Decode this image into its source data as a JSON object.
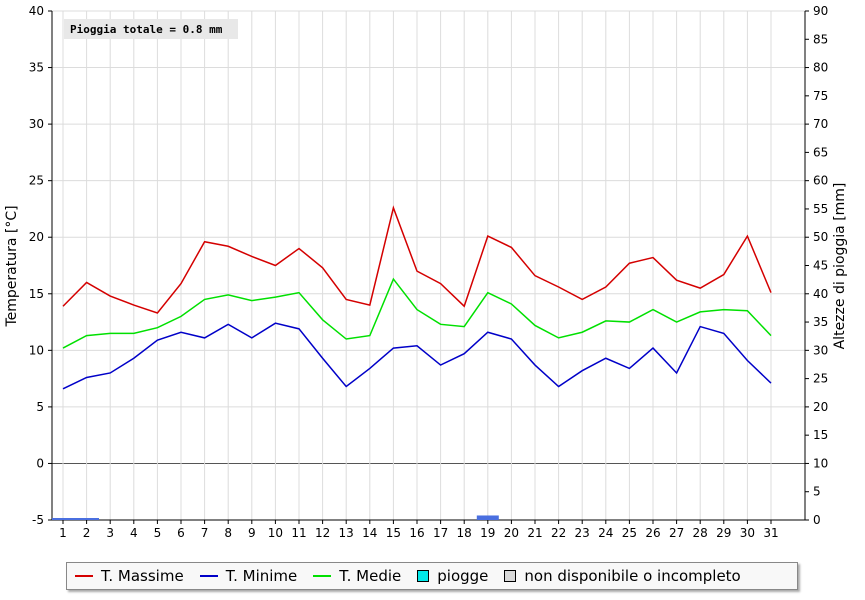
{
  "chart_data": {
    "type": "line",
    "x": [
      1,
      2,
      3,
      4,
      5,
      6,
      7,
      8,
      9,
      10,
      11,
      12,
      13,
      14,
      15,
      16,
      17,
      18,
      19,
      20,
      21,
      22,
      23,
      24,
      25,
      26,
      27,
      28,
      29,
      30,
      31
    ],
    "series": [
      {
        "name": "T. Massime",
        "color": "#d40000",
        "values": [
          13.9,
          16.0,
          14.8,
          14.0,
          13.3,
          15.9,
          19.6,
          19.2,
          18.3,
          17.5,
          19.0,
          17.3,
          14.5,
          14.0,
          22.6,
          17.0,
          15.9,
          13.9,
          20.1,
          19.1,
          16.6,
          15.6,
          14.5,
          15.6,
          17.7,
          18.2,
          16.2,
          15.5,
          16.7,
          20.1,
          15.1
        ]
      },
      {
        "name": "T. Minime",
        "color": "#0000c8",
        "values": [
          6.6,
          7.6,
          8.0,
          9.3,
          10.9,
          11.6,
          11.1,
          12.3,
          11.1,
          12.4,
          11.9,
          9.3,
          6.8,
          8.4,
          10.2,
          10.4,
          8.7,
          9.7,
          11.6,
          11.0,
          8.7,
          6.8,
          8.2,
          9.3,
          8.4,
          10.2,
          8.0,
          12.1,
          11.5,
          9.1,
          7.1
        ]
      },
      {
        "name": "T. Medie",
        "color": "#00e000",
        "values": [
          10.2,
          11.3,
          11.5,
          11.5,
          12.0,
          13.0,
          14.5,
          14.9,
          14.4,
          14.7,
          15.1,
          12.7,
          11.0,
          11.3,
          16.3,
          13.6,
          12.3,
          12.1,
          15.1,
          14.1,
          12.2,
          11.1,
          11.6,
          12.6,
          12.5,
          13.6,
          12.5,
          13.4,
          13.6,
          13.5,
          11.3
        ]
      },
      {
        "name": "piogge",
        "color": "#4a6fe0",
        "values": [
          0.0,
          0.0,
          0,
          0,
          0,
          0,
          0,
          0,
          0,
          0,
          0,
          0,
          0,
          0,
          0,
          0,
          0,
          0,
          0.8,
          0,
          0,
          0,
          0,
          0,
          0,
          0,
          0,
          0,
          0,
          0,
          0
        ]
      }
    ],
    "y_left": {
      "label": "Temperatura [°C]",
      "range": [
        -5,
        40
      ],
      "ticks": [
        -5,
        0,
        5,
        10,
        15,
        20,
        25,
        30,
        35,
        40
      ]
    },
    "y_right": {
      "label": "Altezze di pioggia [mm]",
      "range": [
        0,
        90
      ],
      "ticks": [
        0,
        5,
        10,
        15,
        20,
        25,
        30,
        35,
        40,
        45,
        50,
        55,
        60,
        65,
        70,
        75,
        80,
        85,
        90
      ]
    },
    "x_ticks": [
      "1",
      "2",
      "3",
      "4",
      "5",
      "6",
      "7",
      "8",
      "9",
      "10",
      "11",
      "12",
      "13",
      "14",
      "15",
      "16",
      "17",
      "18",
      "19",
      "20",
      "21",
      "22",
      "23",
      "24",
      "25",
      "26",
      "27",
      "28",
      "29",
      "30",
      "31"
    ],
    "annotation": "Pioggia totale = 0.8 mm",
    "grid": true
  },
  "legend": {
    "items": [
      {
        "label": "T. Massime",
        "kind": "line",
        "color": "#d40000"
      },
      {
        "label": "T. Minime",
        "kind": "line",
        "color": "#0000c8"
      },
      {
        "label": "T. Medie",
        "kind": "line",
        "color": "#00e000"
      },
      {
        "label": "piogge",
        "kind": "square",
        "color": "#00e8e8"
      },
      {
        "label": "non disponibile o incompleto",
        "kind": "square",
        "color": "#d8d8d8"
      }
    ]
  }
}
